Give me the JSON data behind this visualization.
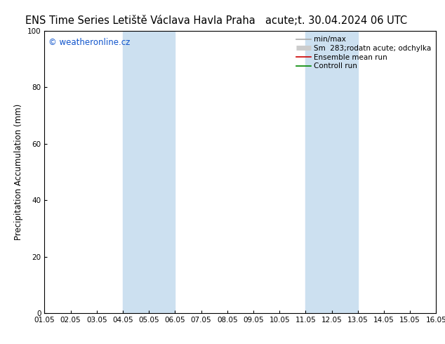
{
  "title_left": "ENS Time Series Letiště Václava Havla Praha",
  "title_right": "acute;t. 30.04.2024 06 UTC",
  "ylabel": "Precipitation Accumulation (mm)",
  "watermark": "© weatheronline.cz",
  "ylim": [
    0,
    100
  ],
  "xmin": 0,
  "xmax": 15,
  "xtick_labels": [
    "01.05",
    "02.05",
    "03.05",
    "04.05",
    "05.05",
    "06.05",
    "07.05",
    "08.05",
    "09.05",
    "10.05",
    "11.05",
    "12.05",
    "13.05",
    "14.05",
    "15.05",
    "16.05"
  ],
  "ytick_labels": [
    "0",
    "20",
    "40",
    "60",
    "80",
    "100"
  ],
  "ytick_values": [
    0,
    20,
    40,
    60,
    80,
    100
  ],
  "shaded_bands": [
    {
      "xstart": 3,
      "xend": 5,
      "color": "#cce0f0"
    },
    {
      "xstart": 10,
      "xend": 12,
      "color": "#cce0f0"
    }
  ],
  "legend_entries": [
    {
      "label": "min/max",
      "color": "#aaaaaa",
      "lw": 1.2,
      "type": "line"
    },
    {
      "label": "Sm  283;rodatn acute; odchylka",
      "color": "#cccccc",
      "lw": 6,
      "type": "thick"
    },
    {
      "label": "Ensemble mean run",
      "color": "#cc0000",
      "lw": 1.2,
      "type": "line"
    },
    {
      "label": "Controll run",
      "color": "#008800",
      "lw": 1.2,
      "type": "line"
    }
  ],
  "background_color": "#ffffff",
  "title_fontsize": 10.5,
  "tick_fontsize": 7.5,
  "ylabel_fontsize": 8.5,
  "watermark_color": "#1155cc",
  "watermark_fontsize": 8.5,
  "legend_fontsize": 7.5
}
